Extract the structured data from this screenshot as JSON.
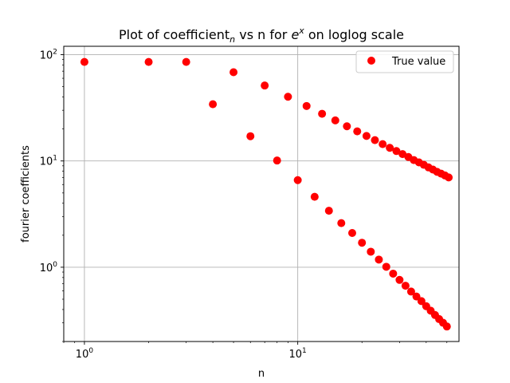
{
  "chart_data": {
    "type": "scatter",
    "title_prefix": "Plot of coefficient",
    "title_sub": "n",
    "title_mid": " vs n for ",
    "title_base": "e",
    "title_sup": "x",
    "title_suffix": " on loglog scale",
    "xlabel": "n",
    "ylabel": "fourier coefficients",
    "xscale": "log",
    "yscale": "log",
    "xlim": [
      0.8,
      57
    ],
    "ylim": [
      0.2,
      120
    ],
    "grid": true,
    "legend_position": "top-right",
    "x_ticks": [
      {
        "value": 1,
        "base": "10",
        "exp": "0"
      },
      {
        "value": 10,
        "base": "10",
        "exp": "1"
      }
    ],
    "y_ticks": [
      {
        "value": 1,
        "base": "10",
        "exp": "0"
      },
      {
        "value": 10,
        "base": "10",
        "exp": "1"
      },
      {
        "value": 100,
        "base": "10",
        "exp": "2"
      }
    ],
    "series": [
      {
        "name": "True value",
        "color": "#ff0000",
        "marker": "circle",
        "x": [
          1,
          2,
          3,
          4,
          5,
          6,
          7,
          8,
          9,
          10,
          11,
          12,
          13,
          14,
          15,
          16,
          17,
          18,
          19,
          20,
          21,
          22,
          23,
          24,
          25,
          26,
          27,
          28,
          29,
          30,
          31,
          32,
          33,
          34,
          35,
          36,
          37,
          38,
          39,
          40,
          41,
          42,
          43,
          44,
          45,
          46,
          47,
          48,
          49,
          50,
          51
        ],
        "y": [
          85.5,
          85.5,
          85.5,
          34.2,
          68.4,
          17.1,
          51.3,
          10.1,
          40.2,
          6.6,
          32.9,
          4.6,
          27.8,
          3.4,
          24.1,
          2.6,
          21.2,
          2.1,
          19.0,
          1.7,
          17.2,
          1.4,
          15.7,
          1.18,
          14.4,
          1.01,
          13.3,
          0.87,
          12.4,
          0.76,
          11.6,
          0.67,
          10.9,
          0.59,
          10.2,
          0.53,
          9.7,
          0.48,
          9.2,
          0.43,
          8.7,
          0.39,
          8.3,
          0.355,
          7.9,
          0.325,
          7.6,
          0.3,
          7.3,
          0.277,
          7.0
        ]
      }
    ]
  }
}
